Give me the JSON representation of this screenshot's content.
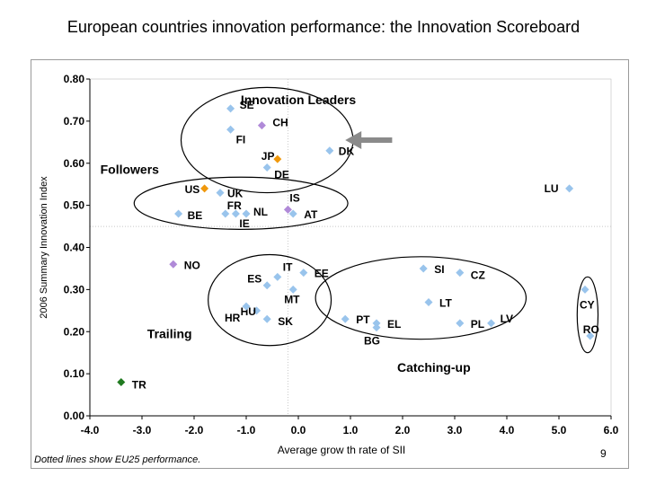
{
  "slide": {
    "title": "European countries innovation performance: the Innovation Scoreboard",
    "footnote": "Dotted lines show EU25 performance.",
    "page_number": "9"
  },
  "colors": {
    "eu_member": "#99c4ec",
    "non_eu_purple": "#b08ad8",
    "us_jp_orange": "#f0980c",
    "turkey_green": "#207a20",
    "group_outline": "#000000",
    "arrow": "#8a8a8a",
    "eu_reference_line": "#c8c8c8"
  },
  "chart_data": {
    "type": "scatter",
    "title": "",
    "xlabel": "Average grow th rate of SII",
    "ylabel": "2006 Summary Innovation Index",
    "xlim": [
      -4.0,
      6.0
    ],
    "ylim": [
      0.0,
      0.8
    ],
    "x_ticks": [
      "-4.0",
      "-3.0",
      "-2.0",
      "-1.0",
      "0.0",
      "1.0",
      "2.0",
      "3.0",
      "4.0",
      "5.0",
      "6.0"
    ],
    "y_ticks": [
      "0.00",
      "0.10",
      "0.20",
      "0.30",
      "0.40",
      "0.50",
      "0.60",
      "0.70",
      "0.80"
    ],
    "eu25_reference": {
      "x": -0.2,
      "y": 0.45
    },
    "points": [
      {
        "label": "SE",
        "x": -1.3,
        "y": 0.73,
        "color": "eu_member"
      },
      {
        "label": "FI",
        "x": -1.3,
        "y": 0.68,
        "color": "eu_member"
      },
      {
        "label": "CH",
        "x": -0.7,
        "y": 0.69,
        "color": "non_eu_purple"
      },
      {
        "label": "JP",
        "x": -0.4,
        "y": 0.61,
        "color": "us_jp_orange"
      },
      {
        "label": "DE",
        "x": -0.6,
        "y": 0.59,
        "color": "eu_member"
      },
      {
        "label": "DK",
        "x": 0.6,
        "y": 0.63,
        "color": "eu_member"
      },
      {
        "label": "US",
        "x": -1.8,
        "y": 0.54,
        "color": "us_jp_orange"
      },
      {
        "label": "UK",
        "x": -1.5,
        "y": 0.53,
        "color": "eu_member"
      },
      {
        "label": "FR",
        "x": -1.4,
        "y": 0.48,
        "color": "eu_member"
      },
      {
        "label": "NL",
        "x": -1.0,
        "y": 0.48,
        "color": "eu_member"
      },
      {
        "label": "BE",
        "x": -2.3,
        "y": 0.48,
        "color": "eu_member"
      },
      {
        "label": "IE",
        "x": -1.2,
        "y": 0.48,
        "color": "eu_member"
      },
      {
        "label": "IS",
        "x": -0.2,
        "y": 0.49,
        "color": "non_eu_purple"
      },
      {
        "label": "AT",
        "x": -0.1,
        "y": 0.48,
        "color": "eu_member"
      },
      {
        "label": "LU",
        "x": 5.2,
        "y": 0.54,
        "color": "eu_member"
      },
      {
        "label": "NO",
        "x": -2.4,
        "y": 0.36,
        "color": "non_eu_purple"
      },
      {
        "label": "IT",
        "x": -0.4,
        "y": 0.33,
        "color": "eu_member"
      },
      {
        "label": "EE",
        "x": 0.1,
        "y": 0.34,
        "color": "eu_member"
      },
      {
        "label": "ES",
        "x": -0.6,
        "y": 0.31,
        "color": "eu_member"
      },
      {
        "label": "MT",
        "x": -0.1,
        "y": 0.3,
        "color": "eu_member"
      },
      {
        "label": "HU",
        "x": -0.8,
        "y": 0.25,
        "color": "eu_member"
      },
      {
        "label": "HR",
        "x": -1.0,
        "y": 0.26,
        "color": "eu_member"
      },
      {
        "label": "SK",
        "x": -0.6,
        "y": 0.23,
        "color": "eu_member"
      },
      {
        "label": "SI",
        "x": 2.4,
        "y": 0.35,
        "color": "eu_member"
      },
      {
        "label": "CZ",
        "x": 3.1,
        "y": 0.34,
        "color": "eu_member"
      },
      {
        "label": "LT",
        "x": 2.5,
        "y": 0.27,
        "color": "eu_member"
      },
      {
        "label": "PT",
        "x": 0.9,
        "y": 0.23,
        "color": "eu_member"
      },
      {
        "label": "EL",
        "x": 1.5,
        "y": 0.22,
        "color": "eu_member"
      },
      {
        "label": "BG",
        "x": 1.5,
        "y": 0.21,
        "color": "eu_member"
      },
      {
        "label": "PL",
        "x": 3.1,
        "y": 0.22,
        "color": "eu_member"
      },
      {
        "label": "LV",
        "x": 3.7,
        "y": 0.22,
        "color": "eu_member"
      },
      {
        "label": "CY",
        "x": 5.5,
        "y": 0.3,
        "color": "eu_member"
      },
      {
        "label": "RO",
        "x": 5.6,
        "y": 0.19,
        "color": "eu_member"
      },
      {
        "label": "TR",
        "x": -3.4,
        "y": 0.08,
        "color": "turkey_green"
      }
    ],
    "groups": [
      {
        "label": "Innovation Leaders",
        "members": [
          "SE",
          "FI",
          "CH",
          "JP",
          "DE",
          "DK"
        ]
      },
      {
        "label": "Followers",
        "members": [
          "US",
          "UK",
          "FR",
          "NL",
          "BE",
          "IE",
          "IS",
          "AT"
        ]
      },
      {
        "label": "Trailing",
        "members": [
          "IT",
          "EE",
          "ES",
          "MT",
          "HU",
          "HR",
          "SK"
        ]
      },
      {
        "label": "Catching-up",
        "members": [
          "SI",
          "CZ",
          "LT",
          "PT",
          "EL",
          "BG",
          "PL",
          "LV"
        ]
      },
      {
        "label": "",
        "members": [
          "CY",
          "RO"
        ]
      }
    ]
  }
}
